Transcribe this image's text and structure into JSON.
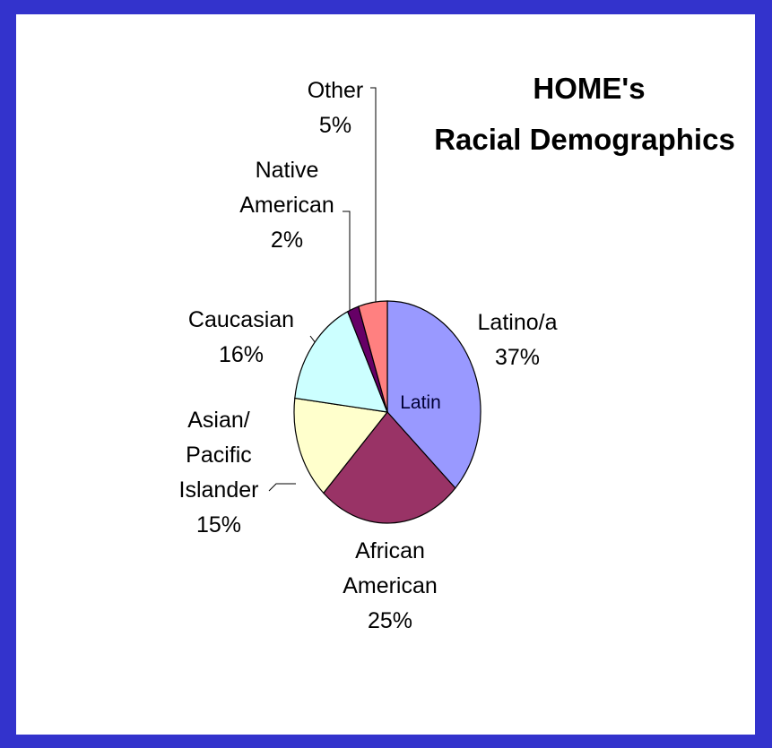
{
  "chart_data": {
    "type": "pie",
    "title_lines": [
      "HOME's",
      "Racial Demographics"
    ],
    "slices": [
      {
        "name": "Latino/a",
        "value": 37,
        "label_lines": [
          "Latino/a",
          "37%"
        ],
        "color": "#9999ff"
      },
      {
        "name": "African American",
        "value": 25,
        "label_lines": [
          "African",
          "American",
          "25%"
        ],
        "color": "#993366"
      },
      {
        "name": "Asian/ Pacific Islander",
        "value": 15,
        "label_lines": [
          "Asian/",
          "Pacific",
          "Islander",
          "15%"
        ],
        "color": "#ffffcc"
      },
      {
        "name": "Caucasian",
        "value": 16,
        "label_lines": [
          "Caucasian",
          "16%"
        ],
        "color": "#ccffff"
      },
      {
        "name": "Native American",
        "value": 2,
        "label_lines": [
          "Native",
          "American",
          "2%"
        ],
        "color": "#660066"
      },
      {
        "name": "Other",
        "value": 5,
        "label_lines": [
          "Other",
          "5%"
        ],
        "color": "#ff8080"
      }
    ],
    "inner_label": "Latin"
  },
  "colors": {
    "background": "#3333cc",
    "panel": "#ffffff"
  }
}
